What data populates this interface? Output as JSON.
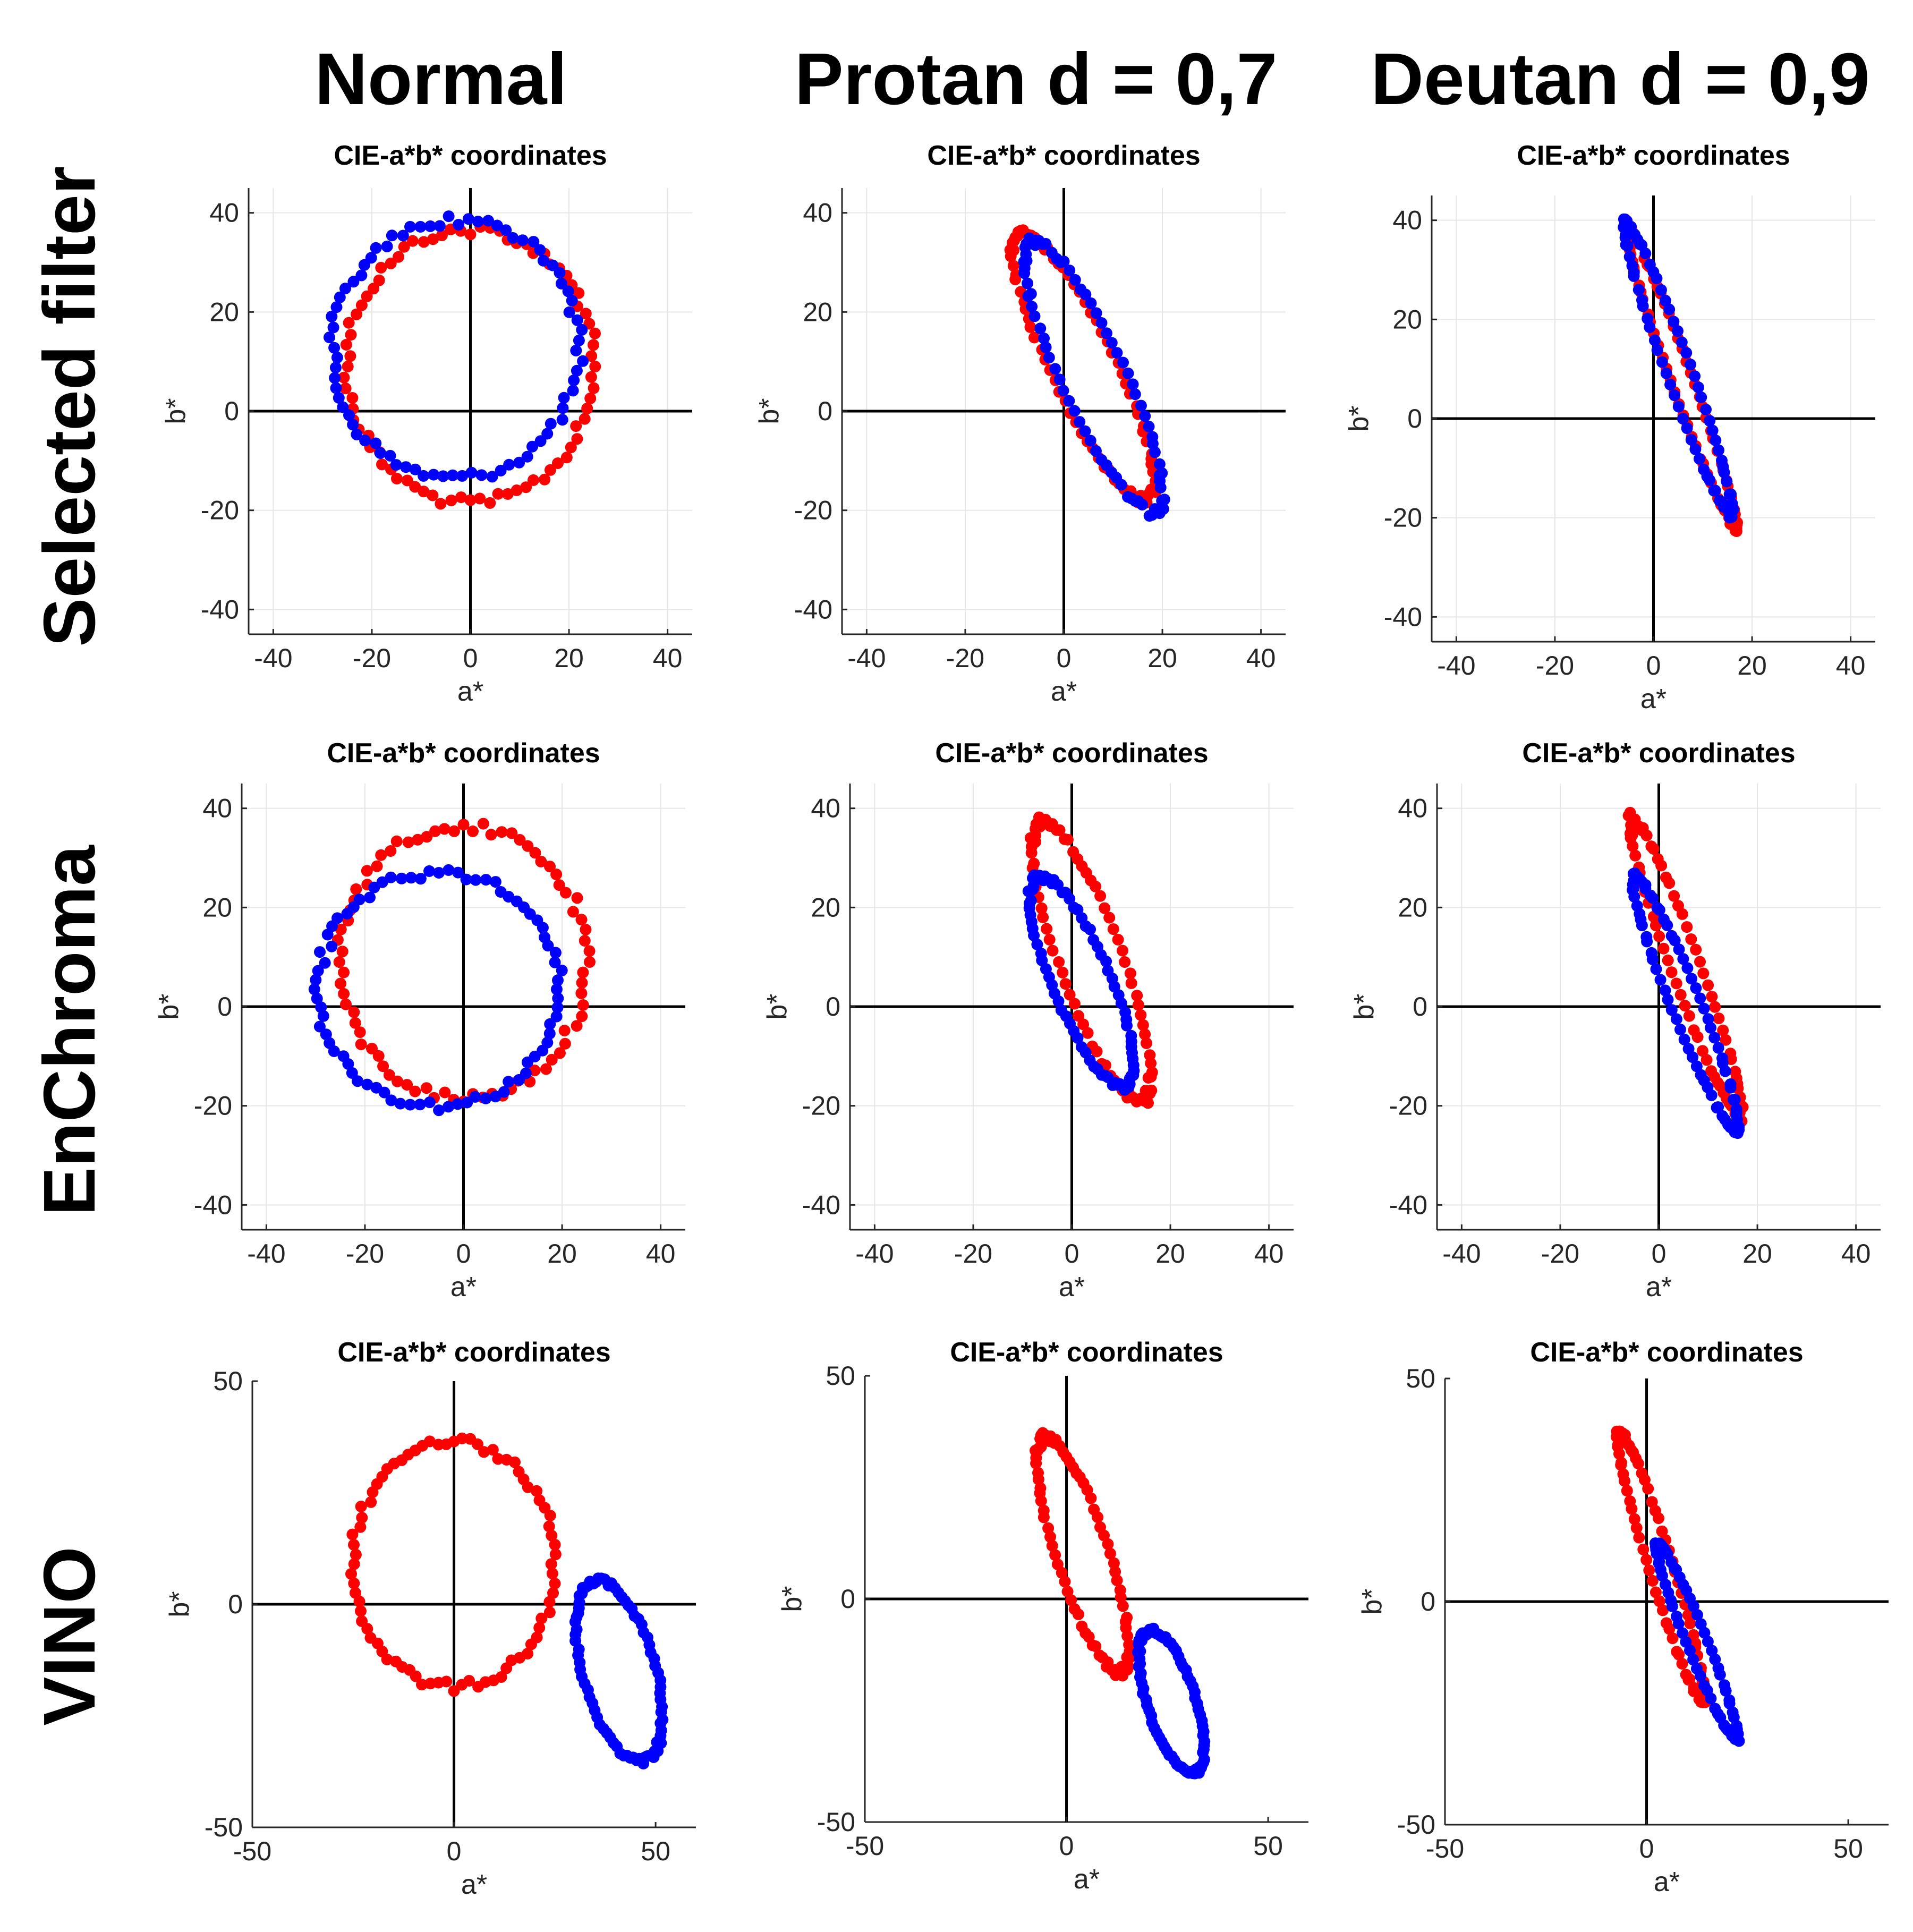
{
  "column_titles": [
    "Normal",
    "Protan d = 0,7",
    "Deutan d = 0,9"
  ],
  "row_titles": [
    "Selected filter",
    "EnChroma",
    "VINO"
  ],
  "colors": {
    "red": "#ff0000",
    "blue": "#0000ff"
  },
  "chart_data": [
    {
      "type": "scatter",
      "row": 0,
      "col": 0,
      "title": "CIE-a*b* coordinates",
      "xlabel": "a*",
      "ylabel": "b*",
      "xlim": [
        -45,
        45
      ],
      "ylim": [
        -45,
        45
      ],
      "xticks": [
        -40,
        -20,
        0,
        20,
        40
      ],
      "yticks": [
        -40,
        -20,
        0,
        20,
        40
      ],
      "grid": true,
      "series": [
        {
          "color": "red",
          "shape": "ellipse",
          "center": [
            0,
            9
          ],
          "radii": [
            25,
            27.5
          ],
          "rotation": 0,
          "n": 80
        },
        {
          "color": "blue",
          "shape": "ellipse",
          "center": [
            -3,
            12.5
          ],
          "radii": [
            25,
            26
          ],
          "rotation": -10,
          "n": 80
        }
      ]
    },
    {
      "type": "scatter",
      "row": 0,
      "col": 1,
      "title": "CIE-a*b* coordinates",
      "xlabel": "a*",
      "ylabel": "b*",
      "xlim": [
        -45,
        45
      ],
      "ylim": [
        -45,
        45
      ],
      "xticks": [
        -40,
        -20,
        0,
        20,
        40
      ],
      "yticks": [
        -40,
        -20,
        0,
        20,
        40
      ],
      "grid": true,
      "series": [
        {
          "color": "red",
          "shape": "ellipse",
          "center": [
            4,
            9
          ],
          "radii": [
            30,
            6.5
          ],
          "rotation": -64,
          "n": 80
        },
        {
          "color": "blue",
          "shape": "ellipse",
          "center": [
            6,
            7
          ],
          "radii": [
            30,
            6.5
          ],
          "rotation": -65,
          "n": 80
        }
      ]
    },
    {
      "type": "scatter",
      "row": 0,
      "col": 2,
      "title": "CIE-a*b* coordinates",
      "xlabel": "a*",
      "ylabel": "b*",
      "xlim": [
        -45,
        45
      ],
      "ylim": [
        -45,
        45
      ],
      "xticks": [
        -40,
        -20,
        0,
        20,
        40
      ],
      "yticks": [
        -40,
        -20,
        0,
        20,
        40
      ],
      "grid": true,
      "series": [
        {
          "color": "red",
          "shape": "ellipse",
          "center": [
            5.5,
            8.5
          ],
          "radii": [
            32,
            2.2
          ],
          "rotation": -70,
          "n": 80
        },
        {
          "color": "blue",
          "shape": "ellipse",
          "center": [
            5,
            10
          ],
          "radii": [
            31,
            2.6
          ],
          "rotation": -70,
          "n": 80
        }
      ]
    },
    {
      "type": "scatter",
      "row": 1,
      "col": 0,
      "title": "CIE-a*b* coordinates",
      "xlabel": "a*",
      "ylabel": "b*",
      "xlim": [
        -45,
        45
      ],
      "ylim": [
        -45,
        45
      ],
      "xticks": [
        -40,
        -20,
        0,
        20,
        40
      ],
      "yticks": [
        -40,
        -20,
        0,
        20,
        40
      ],
      "grid": true,
      "series": [
        {
          "color": "red",
          "shape": "ellipse",
          "center": [
            0,
            9
          ],
          "radii": [
            25,
            27.5
          ],
          "rotation": 0,
          "n": 80
        },
        {
          "color": "blue",
          "shape": "ellipse",
          "center": [
            -5,
            3.5
          ],
          "radii": [
            24.5,
            23.5
          ],
          "rotation": 0,
          "n": 80
        }
      ]
    },
    {
      "type": "scatter",
      "row": 1,
      "col": 1,
      "title": "CIE-a*b* coordinates",
      "xlabel": "a*",
      "ylabel": "b*",
      "xlim": [
        -45,
        45
      ],
      "ylim": [
        -45,
        45
      ],
      "xticks": [
        -40,
        -20,
        0,
        20,
        40
      ],
      "yticks": [
        -40,
        -20,
        0,
        20,
        40
      ],
      "grid": true,
      "series": [
        {
          "color": "red",
          "shape": "ellipse",
          "center": [
            4,
            9
          ],
          "radii": [
            30,
            6.5
          ],
          "rotation": -70,
          "n": 80
        },
        {
          "color": "blue",
          "shape": "ellipse",
          "center": [
            2,
            5
          ],
          "radii": [
            23,
            6
          ],
          "rotation": -67,
          "n": 80
        }
      ]
    },
    {
      "type": "scatter",
      "row": 1,
      "col": 2,
      "title": "CIE-a*b* coordinates",
      "xlabel": "a*",
      "ylabel": "b*",
      "xlim": [
        -45,
        45
      ],
      "ylim": [
        -45,
        45
      ],
      "xticks": [
        -40,
        -20,
        0,
        20,
        40
      ],
      "yticks": [
        -40,
        -20,
        0,
        20,
        40
      ],
      "grid": true,
      "series": [
        {
          "color": "red",
          "shape": "ellipse",
          "center": [
            5.5,
            8
          ],
          "radii": [
            32,
            3
          ],
          "rotation": -70,
          "n": 80
        },
        {
          "color": "blue",
          "shape": "ellipse",
          "center": [
            5.5,
            0.5
          ],
          "radii": [
            27.5,
            3
          ],
          "rotation": -68,
          "n": 80
        }
      ]
    },
    {
      "type": "scatter",
      "row": 2,
      "col": 0,
      "title": "CIE-a*b* coordinates",
      "xlabel": "a*",
      "ylabel": "b*",
      "xlim": [
        -50,
        60
      ],
      "ylim": [
        -50,
        50
      ],
      "xticks": [
        -50,
        0,
        50
      ],
      "yticks": [
        -50,
        0,
        50
      ],
      "grid": false,
      "series": [
        {
          "color": "red",
          "shape": "ellipse",
          "center": [
            0,
            9
          ],
          "radii": [
            25,
            27.5
          ],
          "rotation": 0,
          "n": 80
        },
        {
          "color": "blue",
          "shape": "ellipse",
          "center": [
            41,
            -15
          ],
          "radii": [
            21,
            9
          ],
          "rotation": -72,
          "n": 80
        }
      ]
    },
    {
      "type": "scatter",
      "row": 2,
      "col": 1,
      "title": "CIE-a*b* coordinates",
      "xlabel": "a*",
      "ylabel": "b*",
      "xlim": [
        -50,
        60
      ],
      "ylim": [
        -50,
        50
      ],
      "xticks": [
        -50,
        0,
        50
      ],
      "yticks": [
        -50,
        0,
        50
      ],
      "grid": false,
      "series": [
        {
          "color": "red",
          "shape": "ellipse",
          "center": [
            4,
            10
          ],
          "radii": [
            28,
            6.5
          ],
          "rotation": -70,
          "n": 80
        },
        {
          "color": "blue",
          "shape": "ellipse",
          "center": [
            26,
            -23
          ],
          "radii": [
            17,
            6
          ],
          "rotation": -70,
          "n": 80
        }
      ]
    },
    {
      "type": "scatter",
      "row": 2,
      "col": 2,
      "title": "CIE-a*b* coordinates",
      "xlabel": "a*",
      "ylabel": "b*",
      "xlim": [
        -50,
        60
      ],
      "ylim": [
        -50,
        50
      ],
      "xticks": [
        -50,
        0,
        50
      ],
      "yticks": [
        -50,
        0,
        50
      ],
      "grid": false,
      "series": [
        {
          "color": "red",
          "shape": "ellipse",
          "center": [
            3.5,
            8
          ],
          "radii": [
            32,
            3
          ],
          "rotation": -71,
          "n": 80
        },
        {
          "color": "blue",
          "shape": "ellipse",
          "center": [
            12.5,
            -9
          ],
          "radii": [
            24,
            2.5
          ],
          "rotation": -66,
          "n": 70
        }
      ]
    }
  ]
}
